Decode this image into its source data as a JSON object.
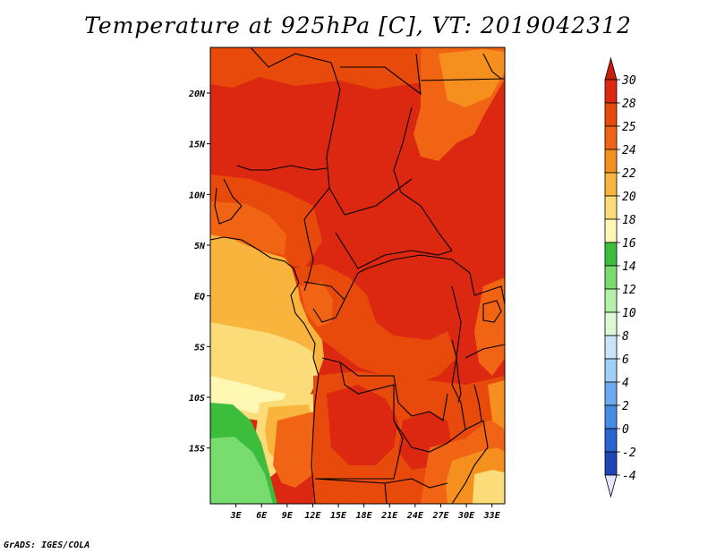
{
  "title": "Temperature at 925hPa [C], VT: 2019042312",
  "credit": "GrADS: IGES/COLA",
  "map": {
    "lat_range": [
      -20.5,
      24.5
    ],
    "lon_range": [
      0,
      34.5
    ],
    "lat_ticks": [
      {
        "value": 20,
        "label": "20N"
      },
      {
        "value": 15,
        "label": "15N"
      },
      {
        "value": 10,
        "label": "10N"
      },
      {
        "value": 5,
        "label": "5N"
      },
      {
        "value": 0,
        "label": "EQ"
      },
      {
        "value": -5,
        "label": "5S"
      },
      {
        "value": -10,
        "label": "10S"
      },
      {
        "value": -15,
        "label": "15S"
      }
    ],
    "lon_ticks": [
      {
        "value": 3,
        "label": "3E"
      },
      {
        "value": 6,
        "label": "6E"
      },
      {
        "value": 9,
        "label": "9E"
      },
      {
        "value": 12,
        "label": "12E"
      },
      {
        "value": 15,
        "label": "15E"
      },
      {
        "value": 18,
        "label": "18E"
      },
      {
        "value": 21,
        "label": "21E"
      },
      {
        "value": 24,
        "label": "24E"
      },
      {
        "value": 27,
        "label": "27E"
      },
      {
        "value": 30,
        "label": "30E"
      },
      {
        "value": 33,
        "label": "33E"
      }
    ]
  },
  "colorbar": {
    "levels": [
      {
        "label": "30",
        "color": "#dc2810"
      },
      {
        "label": "28",
        "color": "#e84a0c"
      },
      {
        "label": "25",
        "color": "#f06414"
      },
      {
        "label": "24",
        "color": "#f5901e"
      },
      {
        "label": "22",
        "color": "#f8b43c"
      },
      {
        "label": "20",
        "color": "#fcdc78"
      },
      {
        "label": "18",
        "color": "#fff7b4"
      },
      {
        "label": "16",
        "color": "#3cbe3c"
      },
      {
        "label": "14",
        "color": "#78dc6e"
      },
      {
        "label": "12",
        "color": "#b4f0aa"
      },
      {
        "label": "10",
        "color": "#dcf8d4"
      },
      {
        "label": "8",
        "color": "#c8e6fa"
      },
      {
        "label": "6",
        "color": "#a0d0f8"
      },
      {
        "label": "4",
        "color": "#6eaaf0"
      },
      {
        "label": "2",
        "color": "#468ce6"
      },
      {
        "label": "0",
        "color": "#2864d2"
      },
      {
        "label": "-2",
        "color": "#1e46b4"
      },
      {
        "label": "-4",
        "color": "#0a1e78"
      }
    ],
    "top_color": "#c81e0a",
    "bottom_color": "#e6e6fa"
  }
}
